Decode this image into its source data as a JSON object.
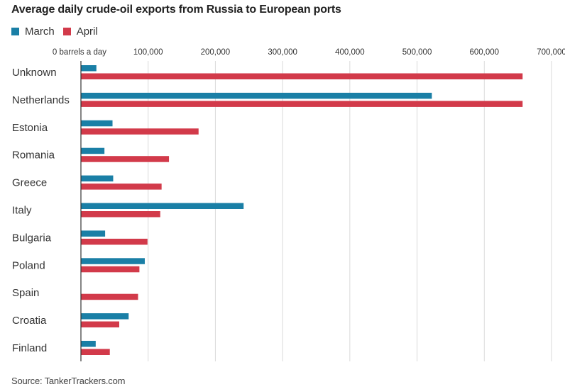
{
  "title": "Average daily crude-oil exports from Russia to European ports",
  "source": "Source: TankerTrackers.com",
  "chart_data": {
    "type": "bar",
    "orientation": "horizontal",
    "title": "Average daily crude-oil exports from Russia to European ports",
    "categories": [
      "Unknown",
      "Netherlands",
      "Estonia",
      "Romania",
      "Greece",
      "Italy",
      "Bulgaria",
      "Poland",
      "Spain",
      "Croatia",
      "Finland"
    ],
    "series": [
      {
        "name": "March",
        "color": "#1a7fa6",
        "values": [
          23000,
          522000,
          47000,
          35000,
          48000,
          242000,
          36000,
          95000,
          0,
          71000,
          22000
        ]
      },
      {
        "name": "April",
        "color": "#d23a4a",
        "values": [
          657000,
          657000,
          175000,
          131000,
          120000,
          118000,
          99000,
          87000,
          85000,
          57000,
          43000
        ]
      }
    ],
    "x_ticks": [
      "0 barrels a day",
      "100,000",
      "200,000",
      "300,000",
      "400,000",
      "500,000",
      "600,000",
      "700,000"
    ],
    "x_tick_values": [
      0,
      100000,
      200000,
      300000,
      400000,
      500000,
      600000,
      700000
    ],
    "xlim": [
      0,
      700000
    ],
    "grid": true,
    "legend": "top-left"
  }
}
